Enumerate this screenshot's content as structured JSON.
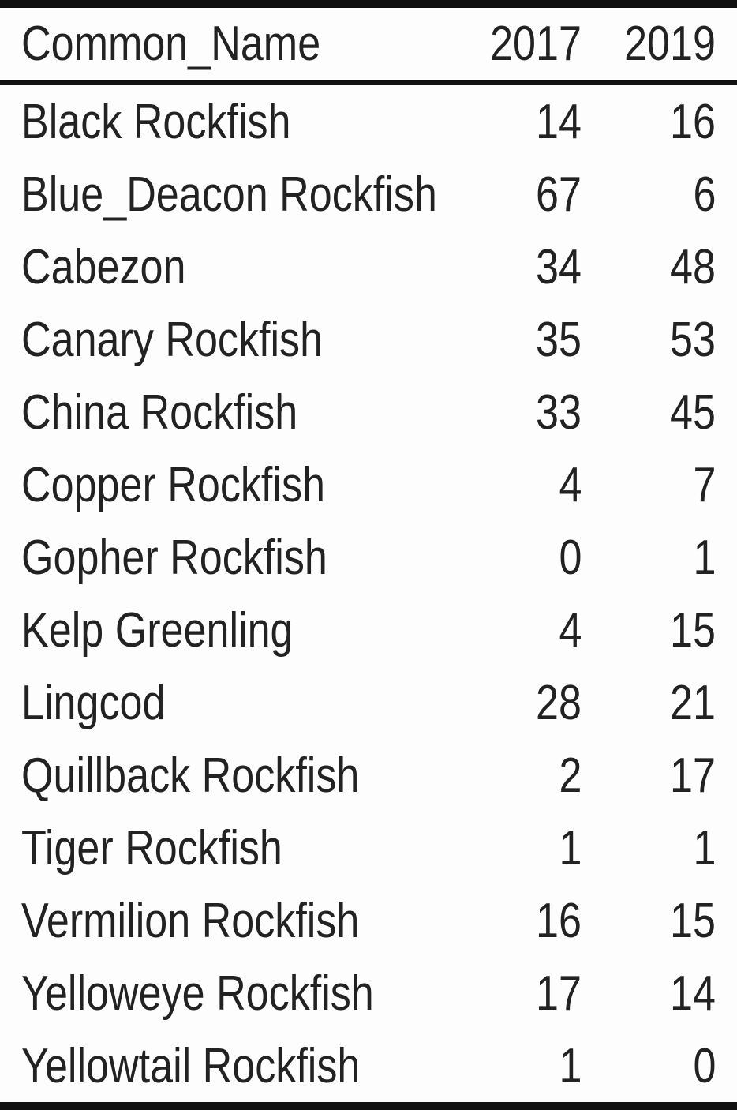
{
  "headers": [
    "Common_Name",
    "2017",
    "2019"
  ],
  "rows": [
    {
      "name": "Black Rockfish",
      "y2017": "14",
      "y2019": "16"
    },
    {
      "name": "Blue_Deacon Rockfish",
      "y2017": "67",
      "y2019": "6"
    },
    {
      "name": "Cabezon",
      "y2017": "34",
      "y2019": "48"
    },
    {
      "name": "Canary Rockfish",
      "y2017": "35",
      "y2019": "53"
    },
    {
      "name": "China Rockfish",
      "y2017": "33",
      "y2019": "45"
    },
    {
      "name": "Copper Rockfish",
      "y2017": "4",
      "y2019": "7"
    },
    {
      "name": "Gopher Rockfish",
      "y2017": "0",
      "y2019": "1"
    },
    {
      "name": "Kelp Greenling",
      "y2017": "4",
      "y2019": "15"
    },
    {
      "name": "Lingcod",
      "y2017": "28",
      "y2019": "21"
    },
    {
      "name": "Quillback Rockfish",
      "y2017": "2",
      "y2019": "17"
    },
    {
      "name": "Tiger Rockfish",
      "y2017": "1",
      "y2019": "1"
    },
    {
      "name": "Vermilion Rockfish",
      "y2017": "16",
      "y2019": "15"
    },
    {
      "name": "Yelloweye Rockfish",
      "y2017": "17",
      "y2019": "14"
    },
    {
      "name": "Yellowtail Rockfish",
      "y2017": "1",
      "y2019": "0"
    }
  ]
}
